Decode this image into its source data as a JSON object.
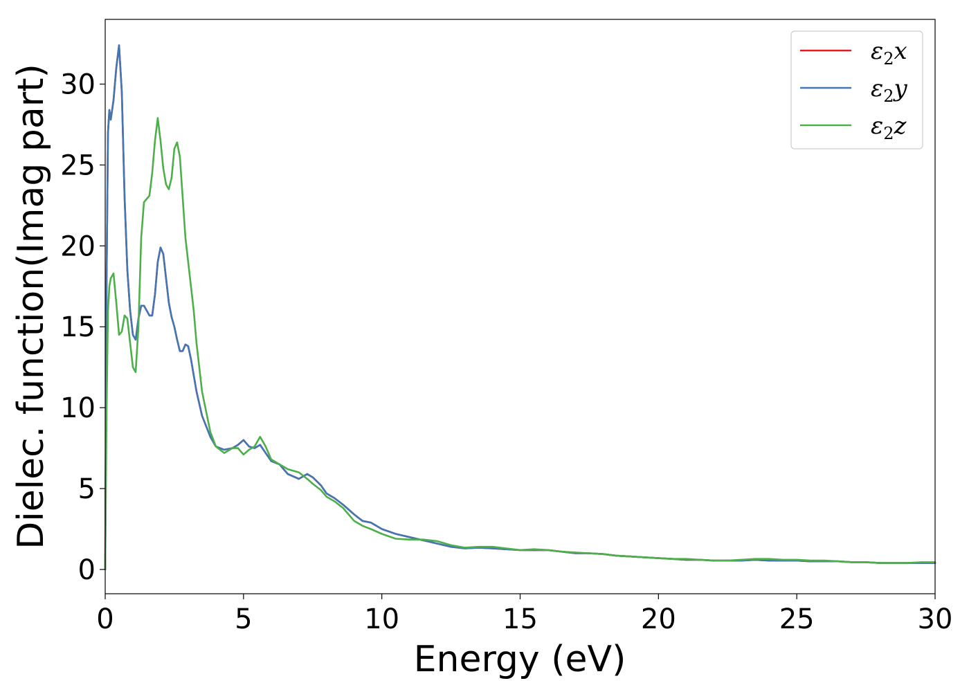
{
  "chart_data": {
    "type": "line",
    "title": "",
    "xlabel": "Energy (eV)",
    "ylabel": "Dielec. function(Imag part)",
    "xlim": [
      0,
      30
    ],
    "ylim": [
      -1.5,
      34
    ],
    "xticks": [
      0,
      5,
      10,
      15,
      20,
      25,
      30
    ],
    "yticks": [
      0,
      5,
      10,
      15,
      20,
      25,
      30
    ],
    "grid": false,
    "legend_placement": "top-right",
    "series": [
      {
        "name": "ε₂x",
        "legend_base": "ε",
        "legend_sub": "2",
        "legend_var": "x",
        "color": "#e41a1c",
        "x": [
          0,
          0.05,
          0.1,
          0.15,
          0.2,
          0.3,
          0.4,
          0.5,
          0.6,
          0.7,
          0.8,
          0.9,
          1.0,
          1.1,
          1.2,
          1.3,
          1.4,
          1.5,
          1.6,
          1.7,
          1.8,
          1.9,
          2.0,
          2.1,
          2.2,
          2.3,
          2.4,
          2.5,
          2.6,
          2.7,
          2.8,
          2.9,
          3.0,
          3.1,
          3.2,
          3.3,
          3.5,
          3.8,
          4.0,
          4.3,
          4.6,
          4.8,
          5.0,
          5.2,
          5.4,
          5.6,
          5.8,
          6.0,
          6.3,
          6.6,
          7.0,
          7.3,
          7.5,
          7.8,
          8.0,
          8.3,
          8.6,
          9.0,
          9.3,
          9.6,
          10.0,
          10.5,
          11.0,
          11.5,
          12.0,
          12.5,
          13.0,
          13.5,
          14.0,
          14.5,
          15.0,
          15.5,
          16.0,
          16.5,
          17.0,
          17.5,
          18.0,
          18.5,
          19.0,
          19.5,
          20.0,
          20.5,
          21.0,
          21.5,
          22.0,
          22.5,
          23.0,
          23.5,
          24.0,
          24.5,
          25.0,
          25.5,
          26.0,
          26.5,
          27.0,
          27.5,
          28.0,
          28.5,
          29.0,
          29.5,
          30.0
        ],
        "y": [
          0,
          18.0,
          27.0,
          28.4,
          27.8,
          29.0,
          31.0,
          32.4,
          29.5,
          23.0,
          18.5,
          16.0,
          14.5,
          14.2,
          15.5,
          16.3,
          16.3,
          16.0,
          15.7,
          15.7,
          17.0,
          19.0,
          19.9,
          19.5,
          18.0,
          16.5,
          15.6,
          15.0,
          14.2,
          13.5,
          13.5,
          13.9,
          13.8,
          13.0,
          12.0,
          11.0,
          9.5,
          8.2,
          7.6,
          7.4,
          7.5,
          7.7,
          8.0,
          7.6,
          7.5,
          7.7,
          7.2,
          6.7,
          6.5,
          5.9,
          5.6,
          5.9,
          5.7,
          5.2,
          4.7,
          4.4,
          4.0,
          3.4,
          3.0,
          2.9,
          2.5,
          2.2,
          2.0,
          1.8,
          1.6,
          1.4,
          1.3,
          1.35,
          1.3,
          1.25,
          1.2,
          1.2,
          1.2,
          1.1,
          1.0,
          1.0,
          0.95,
          0.85,
          0.8,
          0.75,
          0.7,
          0.65,
          0.6,
          0.6,
          0.55,
          0.55,
          0.55,
          0.6,
          0.55,
          0.55,
          0.55,
          0.5,
          0.5,
          0.5,
          0.45,
          0.45,
          0.4,
          0.4,
          0.4,
          0.4,
          0.4
        ]
      },
      {
        "name": "ε₂y",
        "legend_base": "ε",
        "legend_sub": "2",
        "legend_var": "y",
        "color": "#4277b6",
        "x": [
          0,
          0.05,
          0.1,
          0.15,
          0.2,
          0.3,
          0.4,
          0.5,
          0.6,
          0.7,
          0.8,
          0.9,
          1.0,
          1.1,
          1.2,
          1.3,
          1.4,
          1.5,
          1.6,
          1.7,
          1.8,
          1.9,
          2.0,
          2.1,
          2.2,
          2.3,
          2.4,
          2.5,
          2.6,
          2.7,
          2.8,
          2.9,
          3.0,
          3.1,
          3.2,
          3.3,
          3.5,
          3.8,
          4.0,
          4.3,
          4.6,
          4.8,
          5.0,
          5.2,
          5.4,
          5.6,
          5.8,
          6.0,
          6.3,
          6.6,
          7.0,
          7.3,
          7.5,
          7.8,
          8.0,
          8.3,
          8.6,
          9.0,
          9.3,
          9.6,
          10.0,
          10.5,
          11.0,
          11.5,
          12.0,
          12.5,
          13.0,
          13.5,
          14.0,
          14.5,
          15.0,
          15.5,
          16.0,
          16.5,
          17.0,
          17.5,
          18.0,
          18.5,
          19.0,
          19.5,
          20.0,
          20.5,
          21.0,
          21.5,
          22.0,
          22.5,
          23.0,
          23.5,
          24.0,
          24.5,
          25.0,
          25.5,
          26.0,
          26.5,
          27.0,
          27.5,
          28.0,
          28.5,
          29.0,
          29.5,
          30.0
        ],
        "y": [
          0,
          18.0,
          27.0,
          28.4,
          27.8,
          29.0,
          31.0,
          32.4,
          29.5,
          23.0,
          18.5,
          16.0,
          14.5,
          14.2,
          15.5,
          16.3,
          16.3,
          16.0,
          15.7,
          15.7,
          17.0,
          19.0,
          19.9,
          19.5,
          18.0,
          16.5,
          15.6,
          15.0,
          14.2,
          13.5,
          13.5,
          13.9,
          13.8,
          13.0,
          12.0,
          11.0,
          9.5,
          8.2,
          7.6,
          7.4,
          7.5,
          7.7,
          8.0,
          7.6,
          7.5,
          7.7,
          7.2,
          6.7,
          6.5,
          5.9,
          5.6,
          5.9,
          5.7,
          5.2,
          4.7,
          4.4,
          4.0,
          3.4,
          3.0,
          2.9,
          2.5,
          2.2,
          2.0,
          1.8,
          1.6,
          1.4,
          1.3,
          1.35,
          1.3,
          1.25,
          1.2,
          1.2,
          1.2,
          1.1,
          1.0,
          1.0,
          0.95,
          0.85,
          0.8,
          0.75,
          0.7,
          0.65,
          0.6,
          0.6,
          0.55,
          0.55,
          0.55,
          0.6,
          0.55,
          0.55,
          0.55,
          0.5,
          0.5,
          0.5,
          0.45,
          0.45,
          0.4,
          0.4,
          0.4,
          0.4,
          0.4
        ]
      },
      {
        "name": "ε₂z",
        "legend_base": "ε",
        "legend_sub": "2",
        "legend_var": "z",
        "color": "#4daf4a",
        "x": [
          0,
          0.05,
          0.1,
          0.15,
          0.2,
          0.3,
          0.4,
          0.5,
          0.6,
          0.7,
          0.8,
          0.9,
          1.0,
          1.1,
          1.2,
          1.3,
          1.4,
          1.5,
          1.6,
          1.7,
          1.8,
          1.9,
          2.0,
          2.1,
          2.2,
          2.3,
          2.4,
          2.5,
          2.6,
          2.7,
          2.8,
          2.9,
          3.0,
          3.1,
          3.2,
          3.3,
          3.5,
          3.8,
          4.0,
          4.3,
          4.6,
          4.8,
          5.0,
          5.2,
          5.4,
          5.6,
          5.8,
          6.0,
          6.3,
          6.6,
          7.0,
          7.3,
          7.5,
          7.8,
          8.0,
          8.3,
          8.6,
          9.0,
          9.3,
          9.6,
          10.0,
          10.5,
          11.0,
          11.5,
          12.0,
          12.5,
          13.0,
          13.5,
          14.0,
          14.5,
          15.0,
          15.5,
          16.0,
          16.5,
          17.0,
          17.5,
          18.0,
          18.5,
          19.0,
          19.5,
          20.0,
          20.5,
          21.0,
          21.5,
          22.0,
          22.5,
          23.0,
          23.5,
          24.0,
          24.5,
          25.0,
          25.5,
          26.0,
          26.5,
          27.0,
          27.5,
          28.0,
          28.5,
          29.0,
          29.5,
          30.0
        ],
        "y": [
          0,
          10.0,
          16.0,
          17.5,
          18.0,
          18.3,
          16.5,
          14.5,
          14.7,
          15.7,
          15.5,
          14.0,
          12.5,
          12.2,
          15.0,
          20.5,
          22.7,
          22.9,
          23.1,
          24.5,
          26.5,
          27.9,
          26.5,
          24.8,
          23.8,
          23.5,
          24.2,
          26.0,
          26.4,
          25.5,
          23.0,
          20.5,
          19.0,
          17.5,
          16.0,
          14.0,
          11.0,
          8.5,
          7.6,
          7.2,
          7.5,
          7.5,
          7.1,
          7.4,
          7.6,
          8.2,
          7.6,
          6.8,
          6.5,
          6.2,
          6.0,
          5.6,
          5.3,
          4.9,
          4.5,
          4.2,
          3.8,
          3.0,
          2.7,
          2.5,
          2.2,
          1.9,
          1.85,
          1.85,
          1.75,
          1.5,
          1.35,
          1.4,
          1.4,
          1.3,
          1.2,
          1.25,
          1.2,
          1.1,
          1.05,
          1.0,
          0.95,
          0.85,
          0.8,
          0.75,
          0.7,
          0.65,
          0.65,
          0.6,
          0.55,
          0.55,
          0.6,
          0.65,
          0.65,
          0.6,
          0.6,
          0.55,
          0.55,
          0.5,
          0.45,
          0.45,
          0.4,
          0.4,
          0.4,
          0.45,
          0.45
        ]
      }
    ]
  }
}
